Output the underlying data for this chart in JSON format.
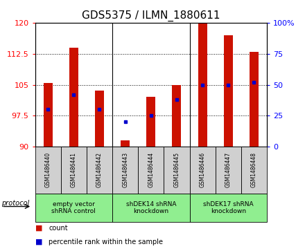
{
  "title": "GDS5375 / ILMN_1880611",
  "samples": [
    "GSM1486440",
    "GSM1486441",
    "GSM1486442",
    "GSM1486443",
    "GSM1486444",
    "GSM1486445",
    "GSM1486446",
    "GSM1486447",
    "GSM1486448"
  ],
  "count_values": [
    105.5,
    114.0,
    103.5,
    91.5,
    102.0,
    105.0,
    120.0,
    117.0,
    113.0
  ],
  "percentile_values": [
    30,
    42,
    30,
    20,
    25,
    38,
    50,
    50,
    52
  ],
  "ylim_left": [
    90,
    120
  ],
  "ylim_right": [
    0,
    100
  ],
  "yticks_left": [
    90,
    97.5,
    105,
    112.5,
    120
  ],
  "yticks_right": [
    0,
    25,
    50,
    75,
    100
  ],
  "bar_color": "#cc1100",
  "dot_color": "#0000cc",
  "bar_bottom": 90,
  "groups": [
    {
      "label": "empty vector\nshRNA control",
      "start": 0,
      "end": 3
    },
    {
      "label": "shDEK14 shRNA\nknockdown",
      "start": 3,
      "end": 6
    },
    {
      "label": "shDEK17 shRNA\nknockdown",
      "start": 6,
      "end": 9
    }
  ],
  "sample_box_color": "#d0d0d0",
  "group_box_color": "#90ee90",
  "legend_count_label": "count",
  "legend_pct_label": "percentile rank within the sample",
  "title_fontsize": 11,
  "tick_fontsize": 8,
  "bar_width": 0.35
}
